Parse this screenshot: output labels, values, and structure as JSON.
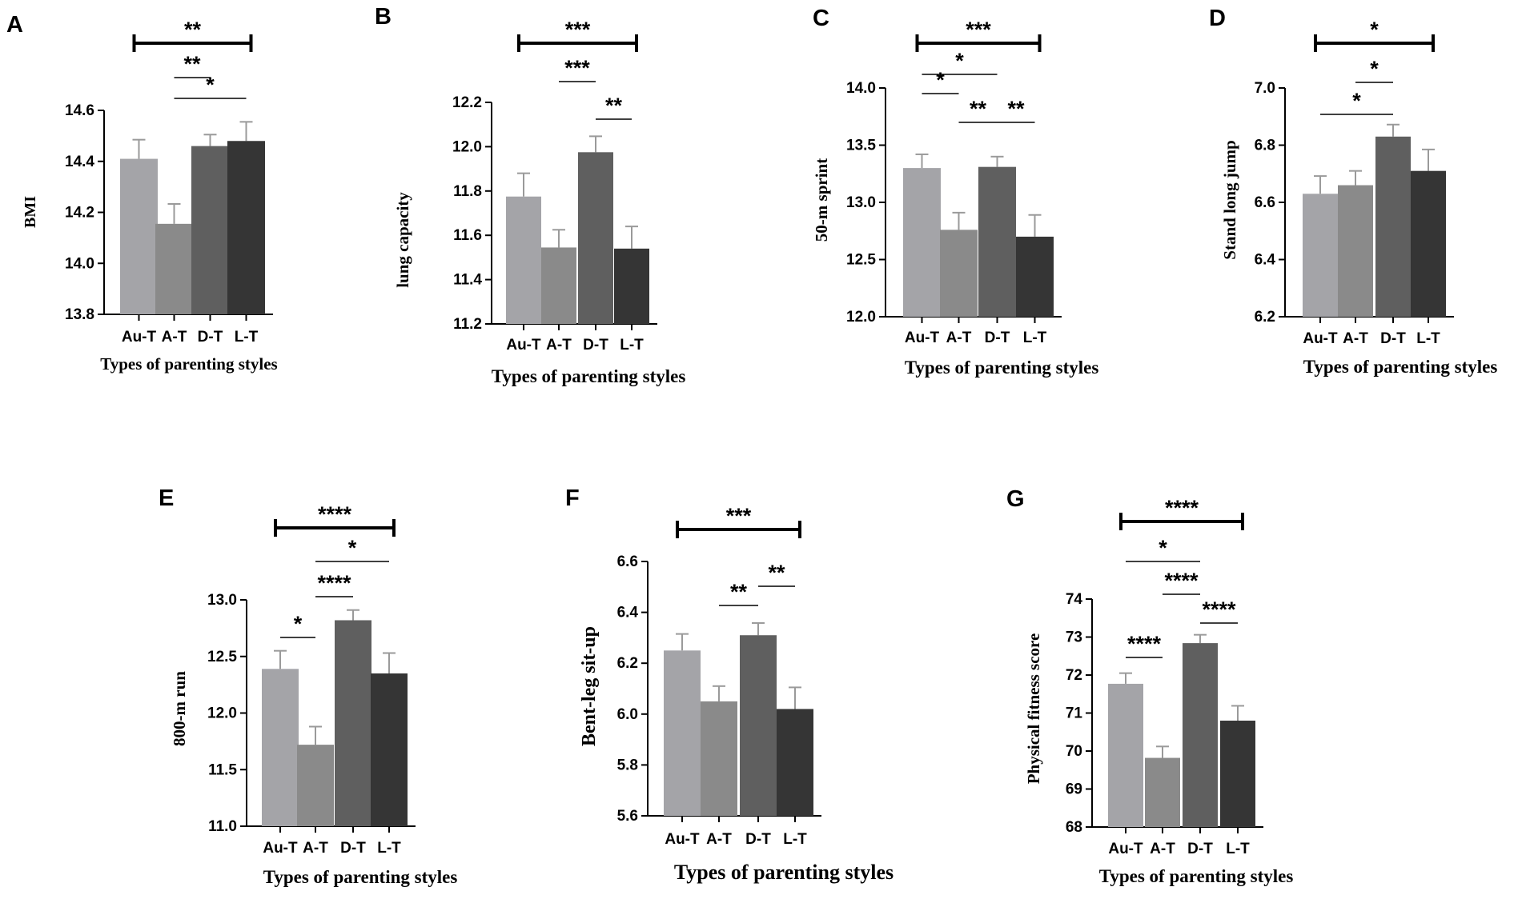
{
  "chart_data": [
    {
      "type": "bar",
      "panel": "A",
      "categories": [
        "Au-T",
        "A-T",
        "D-T",
        "L-T"
      ],
      "values": [
        14.41,
        14.155,
        14.46,
        14.48
      ],
      "errors": [
        0.075,
        0.078,
        0.045,
        0.075
      ],
      "colors": [
        "#a4a4a8",
        "#8a8a8a",
        "#5f5f5f",
        "#353535"
      ],
      "ylim": [
        13.8,
        14.6
      ],
      "yticks": [
        "13.8",
        "14.0",
        "14.2",
        "14.4",
        "14.6"
      ],
      "ylabel": "BMI",
      "xlabel": "Types of parenting styles",
      "significance": [
        {
          "from": 0,
          "to": 3,
          "label": "**",
          "thick": true
        },
        {
          "from": 1,
          "to": 3,
          "label": "*",
          "thick": false
        },
        {
          "from": 1,
          "to": 2,
          "label": "**",
          "thick": false
        }
      ]
    },
    {
      "type": "bar",
      "panel": "B",
      "categories": [
        "Au-T",
        "A-T",
        "D-T",
        "L-T"
      ],
      "values": [
        11.775,
        11.545,
        11.975,
        11.54
      ],
      "errors": [
        0.105,
        0.08,
        0.072,
        0.1
      ],
      "colors": [
        "#a4a4a8",
        "#8a8a8a",
        "#5f5f5f",
        "#353535"
      ],
      "ylim": [
        11.2,
        12.2
      ],
      "yticks": [
        "11.2",
        "11.4",
        "11.6",
        "11.8",
        "12.0",
        "12.2"
      ],
      "ylabel": "lung capacity",
      "xlabel": "Types of parenting styles",
      "significance": [
        {
          "from": 0,
          "to": 3,
          "label": "***",
          "thick": true
        },
        {
          "from": 1,
          "to": 2,
          "label": "***",
          "thick": false
        },
        {
          "from": 2,
          "to": 3,
          "label": "**",
          "thick": false
        }
      ]
    },
    {
      "type": "bar",
      "panel": "C",
      "categories": [
        "Au-T",
        "A-T",
        "D-T",
        "L-T"
      ],
      "values": [
        13.3,
        12.76,
        13.31,
        12.7
      ],
      "errors": [
        0.12,
        0.15,
        0.09,
        0.19
      ],
      "colors": [
        "#a4a4a8",
        "#8a8a8a",
        "#5f5f5f",
        "#353535"
      ],
      "ylim": [
        12.0,
        14.0
      ],
      "yticks": [
        "12.0",
        "12.5",
        "13.0",
        "13.5",
        "14.0"
      ],
      "ylabel": "50-m sprint",
      "xlabel": "Types of parenting styles",
      "significance": [
        {
          "from": 0,
          "to": 3,
          "label": "***",
          "thick": true
        },
        {
          "from": 0,
          "to": 2,
          "label": "*",
          "thick": false
        },
        {
          "from": 1,
          "to": 2,
          "label": "**",
          "thick": false
        },
        {
          "from": 0,
          "to": 1,
          "label": "*",
          "thick": false
        },
        {
          "from": 2,
          "to": 3,
          "label": "**",
          "thick": false
        }
      ]
    },
    {
      "type": "bar",
      "panel": "D",
      "categories": [
        "Au-T",
        "A-T",
        "D-T",
        "L-T"
      ],
      "values": [
        6.63,
        6.66,
        6.83,
        6.71
      ],
      "errors": [
        0.062,
        0.05,
        0.042,
        0.075
      ],
      "colors": [
        "#a4a4a8",
        "#8a8a8a",
        "#5f5f5f",
        "#353535"
      ],
      "ylim": [
        6.2,
        7.0
      ],
      "yticks": [
        "6.2",
        "6.4",
        "6.6",
        "6.8",
        "7.0"
      ],
      "ylabel": "Stand long jump",
      "xlabel": "Types of parenting styles",
      "significance": [
        {
          "from": 0,
          "to": 3,
          "label": "*",
          "thick": true
        },
        {
          "from": 1,
          "to": 2,
          "label": "*",
          "thick": false
        },
        {
          "from": 0,
          "to": 2,
          "label": "*",
          "thick": false
        }
      ]
    },
    {
      "type": "bar",
      "panel": "E",
      "categories": [
        "Au-T",
        "A-T",
        "D-T",
        "L-T"
      ],
      "values": [
        12.39,
        11.72,
        12.82,
        12.35
      ],
      "errors": [
        0.16,
        0.16,
        0.09,
        0.18
      ],
      "colors": [
        "#a4a4a8",
        "#8a8a8a",
        "#5f5f5f",
        "#353535"
      ],
      "ylim": [
        11.0,
        13.0
      ],
      "yticks": [
        "11.0",
        "11.5",
        "12.0",
        "12.5",
        "13.0"
      ],
      "ylabel": "800-m run",
      "xlabel": "Types of parenting styles",
      "significance": [
        {
          "from": 0,
          "to": 3,
          "label": "****",
          "thick": true
        },
        {
          "from": 1,
          "to": 3,
          "label": "*",
          "thick": false
        },
        {
          "from": 1,
          "to": 2,
          "label": "****",
          "thick": false
        },
        {
          "from": 0,
          "to": 1,
          "label": "*",
          "thick": false
        }
      ]
    },
    {
      "type": "bar",
      "panel": "F",
      "categories": [
        "Au-T",
        "A-T",
        "D-T",
        "L-T"
      ],
      "values": [
        6.25,
        6.05,
        6.31,
        6.02
      ],
      "errors": [
        0.065,
        0.06,
        0.048,
        0.085
      ],
      "colors": [
        "#a4a4a8",
        "#8a8a8a",
        "#5f5f5f",
        "#353535"
      ],
      "ylim": [
        5.6,
        6.6
      ],
      "yticks": [
        "5.6",
        "5.8",
        "6.0",
        "6.2",
        "6.4",
        "6.6"
      ],
      "ylabel": "Bent-leg sit-up",
      "xlabel": "Types of parenting styles",
      "significance": [
        {
          "from": 0,
          "to": 3,
          "label": "***",
          "thick": true
        },
        {
          "from": 2,
          "to": 3,
          "label": "**",
          "thick": false
        },
        {
          "from": 1,
          "to": 2,
          "label": "**",
          "thick": false
        }
      ]
    },
    {
      "type": "bar",
      "panel": "G",
      "categories": [
        "Au-T",
        "A-T",
        "D-T",
        "L-T"
      ],
      "values": [
        71.77,
        69.82,
        72.84,
        70.8
      ],
      "errors": [
        0.28,
        0.3,
        0.22,
        0.39
      ],
      "colors": [
        "#a4a4a8",
        "#8a8a8a",
        "#5f5f5f",
        "#353535"
      ],
      "ylim": [
        68,
        74
      ],
      "yticks": [
        "68",
        "69",
        "70",
        "71",
        "72",
        "73",
        "74"
      ],
      "ylabel": "Physical fitness score",
      "xlabel": "Types of parenting styles",
      "significance": [
        {
          "from": 0,
          "to": 3,
          "label": "****",
          "thick": true
        },
        {
          "from": 0,
          "to": 2,
          "label": "*",
          "thick": false
        },
        {
          "from": 1,
          "to": 2,
          "label": "****",
          "thick": false
        },
        {
          "from": 2,
          "to": 3,
          "label": "****",
          "thick": false
        },
        {
          "from": 0,
          "to": 1,
          "label": "****",
          "thick": false
        }
      ]
    }
  ]
}
